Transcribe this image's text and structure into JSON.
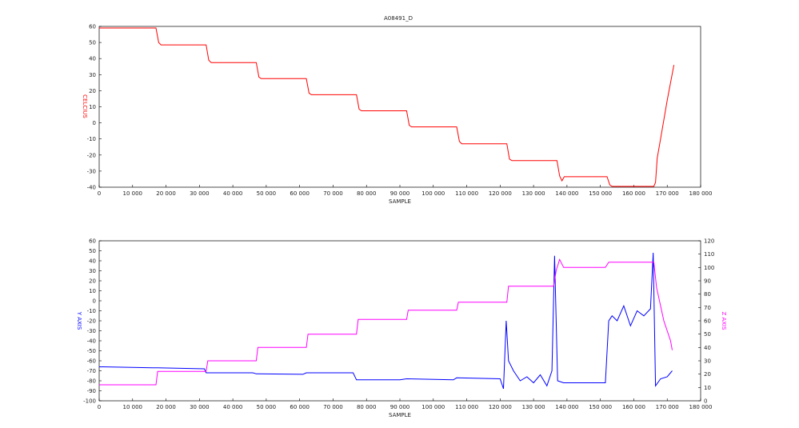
{
  "chart_data": [
    {
      "type": "line",
      "title": "A08491_D",
      "xlabel": "SAMPLE",
      "ylabel": "CELCIUS",
      "xlim": [
        0,
        180000
      ],
      "ylim": [
        -40,
        60
      ],
      "xticks": [
        0,
        10000,
        20000,
        30000,
        40000,
        50000,
        60000,
        70000,
        80000,
        90000,
        100000,
        110000,
        120000,
        130000,
        140000,
        150000,
        160000,
        170000,
        180000
      ],
      "xtick_labels": [
        "0",
        "10 000",
        "20 000",
        "30 000",
        "40 000",
        "50 000",
        "60 000",
        "70 000",
        "80 000",
        "90 000",
        "100 000",
        "110 000",
        "120 000",
        "130 000",
        "140 000",
        "150 000",
        "160 000",
        "170 000",
        "180 000"
      ],
      "yticks": [
        -40,
        -30,
        -20,
        -10,
        0,
        10,
        20,
        30,
        40,
        50,
        60
      ],
      "ytick_labels": [
        "-40",
        "-30",
        "-20",
        "-10",
        "0",
        "10",
        "20",
        "30",
        "40",
        "50",
        "60"
      ],
      "series": [
        {
          "name": "CELCIUS",
          "color": "#ff0000",
          "points": [
            [
              0,
              59
            ],
            [
              17000,
              59
            ],
            [
              17800,
              50
            ],
            [
              18500,
              48.5
            ],
            [
              32000,
              48.5
            ],
            [
              32800,
              39
            ],
            [
              33500,
              37.5
            ],
            [
              47000,
              37.5
            ],
            [
              47800,
              28.5
            ],
            [
              48500,
              27.5
            ],
            [
              62000,
              27.5
            ],
            [
              62800,
              18.5
            ],
            [
              63500,
              17.5
            ],
            [
              77000,
              17.5
            ],
            [
              77800,
              8.5
            ],
            [
              78500,
              7.5
            ],
            [
              92000,
              7.5
            ],
            [
              92800,
              -1.5
            ],
            [
              93500,
              -2.5
            ],
            [
              107000,
              -2.5
            ],
            [
              107800,
              -11.5
            ],
            [
              108500,
              -13
            ],
            [
              122000,
              -13
            ],
            [
              122800,
              -22.5
            ],
            [
              123500,
              -23.5
            ],
            [
              137000,
              -23.5
            ],
            [
              137800,
              -33
            ],
            [
              138500,
              -36
            ],
            [
              139200,
              -33.5
            ],
            [
              152000,
              -33.5
            ],
            [
              152800,
              -38.5
            ],
            [
              153500,
              -39.5
            ],
            [
              166000,
              -39.5
            ],
            [
              166500,
              -37
            ],
            [
              167000,
              -22
            ],
            [
              168000,
              -10
            ],
            [
              170000,
              14
            ],
            [
              172000,
              36
            ]
          ]
        }
      ]
    },
    {
      "type": "line",
      "xlabel": "SAMPLE",
      "ylabel": "Y AXIS",
      "y2label": "Z AXIS",
      "xlim": [
        0,
        180000
      ],
      "ylim": [
        -100,
        60
      ],
      "y2lim": [
        0,
        120
      ],
      "xticks": [
        0,
        10000,
        20000,
        30000,
        40000,
        50000,
        60000,
        70000,
        80000,
        90000,
        100000,
        110000,
        120000,
        130000,
        140000,
        150000,
        160000,
        170000,
        180000
      ],
      "xtick_labels": [
        "0",
        "10 000",
        "20 000",
        "30 000",
        "40 000",
        "50 000",
        "60 000",
        "70 000",
        "80 000",
        "90 000",
        "100 000",
        "110 000",
        "120 000",
        "130 000",
        "140 000",
        "150 000",
        "160 000",
        "170 000",
        "180 000"
      ],
      "yticks": [
        -100,
        -90,
        -80,
        -70,
        -60,
        -50,
        -40,
        -30,
        -20,
        -10,
        0,
        10,
        20,
        30,
        40,
        50,
        60
      ],
      "ytick_labels": [
        "-100",
        "-90",
        "-80",
        "-70",
        "-60",
        "-50",
        "-40",
        "-30",
        "-20",
        "-10",
        "0",
        "10",
        "20",
        "30",
        "40",
        "50",
        "60"
      ],
      "y2ticks": [
        0,
        10,
        20,
        30,
        40,
        50,
        60,
        70,
        80,
        90,
        100,
        110,
        120
      ],
      "y2tick_labels": [
        "0",
        "10",
        "20",
        "30",
        "40",
        "50",
        "60",
        "70",
        "80",
        "90",
        "100",
        "110",
        "120"
      ],
      "series": [
        {
          "name": "Y AXIS",
          "axis": "left",
          "color": "#0000ff",
          "points": [
            [
              0,
              -66
            ],
            [
              16000,
              -67
            ],
            [
              17500,
              -67
            ],
            [
              31500,
              -68
            ],
            [
              32000,
              -72
            ],
            [
              46000,
              -72
            ],
            [
              47000,
              -73
            ],
            [
              61000,
              -73.5
            ],
            [
              62000,
              -72
            ],
            [
              76000,
              -72
            ],
            [
              77000,
              -79
            ],
            [
              90000,
              -79
            ],
            [
              92000,
              -78
            ],
            [
              106000,
              -79
            ],
            [
              107000,
              -77
            ],
            [
              120000,
              -78
            ],
            [
              121000,
              -88
            ],
            [
              121800,
              -20
            ],
            [
              122500,
              -60
            ],
            [
              124000,
              -70
            ],
            [
              126000,
              -80
            ],
            [
              128000,
              -76
            ],
            [
              130000,
              -82
            ],
            [
              132000,
              -74
            ],
            [
              134000,
              -85
            ],
            [
              135500,
              -70
            ],
            [
              136300,
              45
            ],
            [
              137200,
              -80
            ],
            [
              139000,
              -82
            ],
            [
              151500,
              -82
            ],
            [
              152500,
              -20
            ],
            [
              153500,
              -15
            ],
            [
              155000,
              -20
            ],
            [
              157000,
              -5
            ],
            [
              159000,
              -25
            ],
            [
              161000,
              -10
            ],
            [
              163000,
              -15
            ],
            [
              165000,
              -8
            ],
            [
              165800,
              48
            ],
            [
              166500,
              -85
            ],
            [
              168000,
              -78
            ],
            [
              170000,
              -76
            ],
            [
              171500,
              -70
            ]
          ]
        },
        {
          "name": "Z AXIS",
          "axis": "right",
          "color": "#ff00ff",
          "points": [
            [
              0,
              12
            ],
            [
              17000,
              12
            ],
            [
              17500,
              22
            ],
            [
              32000,
              22
            ],
            [
              32500,
              30
            ],
            [
              47000,
              30
            ],
            [
              47500,
              40
            ],
            [
              62000,
              40
            ],
            [
              62500,
              50
            ],
            [
              77000,
              50
            ],
            [
              77500,
              61
            ],
            [
              92000,
              61
            ],
            [
              92500,
              68
            ],
            [
              107000,
              68
            ],
            [
              107500,
              74
            ],
            [
              122000,
              74
            ],
            [
              122500,
              86
            ],
            [
              136000,
              86
            ],
            [
              136800,
              98
            ],
            [
              137800,
              106
            ],
            [
              139000,
              100
            ],
            [
              151500,
              100
            ],
            [
              152500,
              104
            ],
            [
              166000,
              104
            ],
            [
              166800,
              85
            ],
            [
              169000,
              60
            ],
            [
              171000,
              45
            ],
            [
              171500,
              38
            ]
          ]
        }
      ]
    }
  ]
}
